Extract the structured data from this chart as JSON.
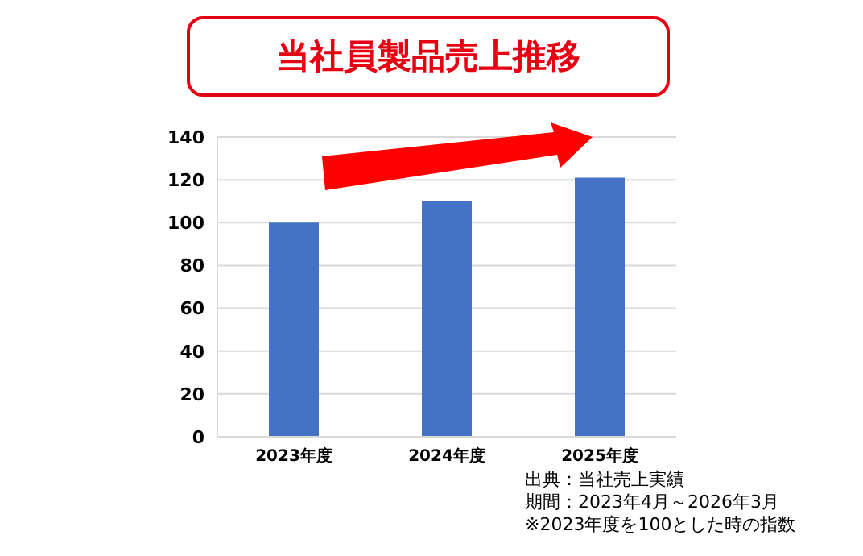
{
  "chart_data": {
    "type": "bar",
    "title": "当社員製品売上推移",
    "categories": [
      "2023年度",
      "2024年度",
      "2025年度"
    ],
    "values": [
      100,
      110,
      121
    ],
    "color": "#4472c4",
    "ylim": [
      0,
      140
    ],
    "yticks": [
      0,
      20,
      40,
      60,
      80,
      100,
      120,
      140
    ],
    "grid": "y",
    "annotations": [
      "出典：当社売上実績",
      "期間：2023年4月～2026年3月",
      "※2023年度を100とした時の指数"
    ]
  }
}
